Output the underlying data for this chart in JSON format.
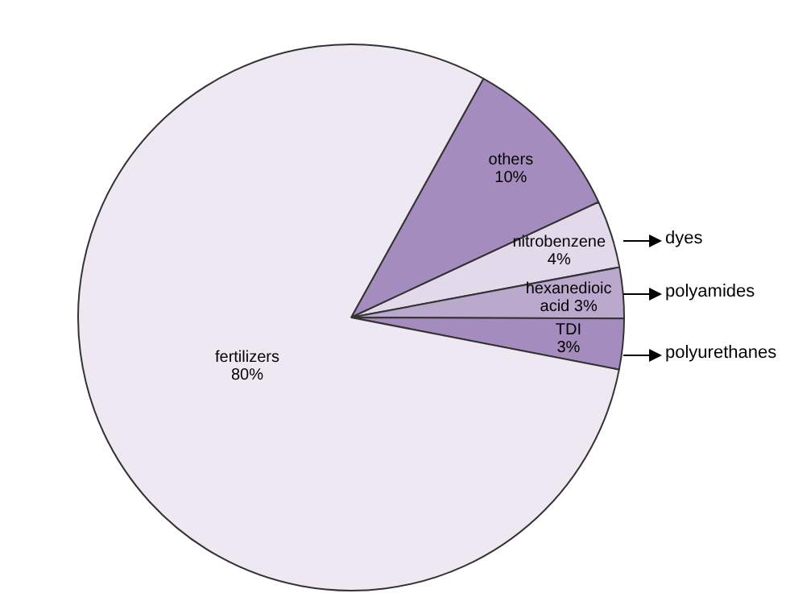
{
  "chart_data": {
    "type": "pie",
    "categories": [
      "others",
      "nitrobenzene",
      "hexanedioic acid",
      "TDI",
      "fertilizers"
    ],
    "values": [
      10,
      4,
      3,
      3,
      80
    ],
    "value_labels": [
      "10%",
      "4%",
      "3%",
      "3%",
      "80%"
    ],
    "colors": [
      "#a58cbf",
      "#e2d9ea",
      "#bba8cd",
      "#a58cbf",
      "#eee8f2"
    ],
    "annotations": [
      "dyes",
      "polyamides",
      "polyurethanes"
    ],
    "legend": false
  }
}
